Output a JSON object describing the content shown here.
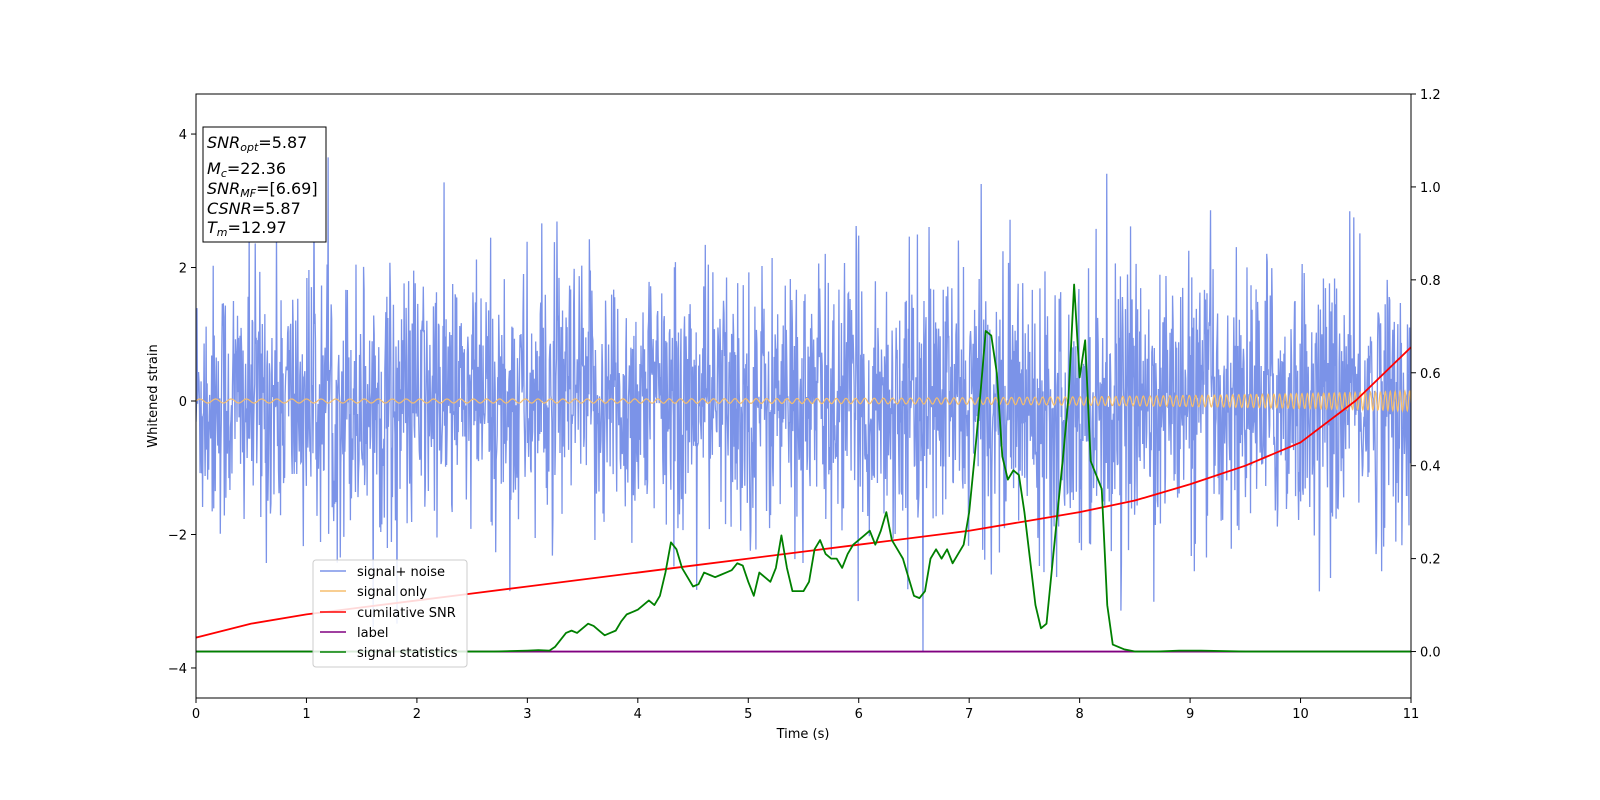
{
  "chart_data": {
    "type": "line",
    "xlabel": "Time (s)",
    "ylabel": "Whitened strain",
    "xlim": [
      0,
      11
    ],
    "ylim": [
      -4.45,
      4.6
    ],
    "y2lim": [
      -0.1,
      1.2
    ],
    "x_ticks": [
      0,
      1,
      2,
      3,
      4,
      5,
      6,
      7,
      8,
      9,
      10,
      11
    ],
    "y_ticks": [
      -4,
      -2,
      0,
      2,
      4
    ],
    "y2_ticks": [
      0.0,
      0.2,
      0.4,
      0.6,
      0.8,
      1.0,
      1.2
    ],
    "x_tick_labels": [
      "0",
      "1",
      "2",
      "3",
      "4",
      "5",
      "6",
      "7",
      "8",
      "9",
      "10",
      "11"
    ],
    "y_tick_labels": [
      "−4",
      "−2",
      "0",
      "2",
      "4"
    ],
    "y2_tick_labels": [
      "0.0",
      "0.2",
      "0.4",
      "0.6",
      "0.8",
      "1.0",
      "1.2"
    ],
    "grid": false,
    "legend_placement": "lower-left",
    "info_box": {
      "snr_opt": "5.87",
      "mc": "22.36",
      "snr_mf": "[6.69]",
      "csnr": "5.87",
      "tm": "12.97"
    },
    "series": [
      {
        "name": "signal+ noise",
        "axis": "left",
        "color": "#7b93e8",
        "description_level": "noise",
        "std": 1.0
      },
      {
        "name": "signal only",
        "axis": "left",
        "color": "#f5be6e",
        "amplitude_start": 0.03,
        "amplitude_end": 0.15
      },
      {
        "name": "cumilative SNR",
        "axis": "right",
        "color": "#ff0000",
        "x": [
          0,
          0.5,
          1,
          1.5,
          2,
          2.5,
          3,
          3.5,
          4,
          4.5,
          5,
          5.5,
          6,
          6.5,
          7,
          7.5,
          8,
          8.5,
          9,
          9.5,
          10,
          10.5,
          11
        ],
        "values": [
          0.03,
          0.06,
          0.08,
          0.095,
          0.11,
          0.125,
          0.14,
          0.155,
          0.17,
          0.185,
          0.2,
          0.215,
          0.23,
          0.245,
          0.26,
          0.28,
          0.3,
          0.325,
          0.36,
          0.4,
          0.45,
          0.54,
          0.655
        ]
      },
      {
        "name": "label",
        "axis": "right",
        "color": "#800080",
        "x": [
          0,
          11
        ],
        "values": [
          0.0,
          0.0
        ]
      },
      {
        "name": "signal statistics",
        "axis": "right",
        "color": "#008000",
        "x": [
          0,
          0.5,
          1,
          1.5,
          2,
          2.5,
          2.7,
          3.0,
          3.1,
          3.2,
          3.25,
          3.3,
          3.35,
          3.4,
          3.45,
          3.5,
          3.55,
          3.6,
          3.65,
          3.7,
          3.75,
          3.8,
          3.85,
          3.9,
          3.95,
          4.0,
          4.05,
          4.1,
          4.15,
          4.2,
          4.25,
          4.3,
          4.35,
          4.4,
          4.45,
          4.5,
          4.55,
          4.6,
          4.65,
          4.7,
          4.75,
          4.8,
          4.85,
          4.9,
          4.95,
          5.0,
          5.05,
          5.1,
          5.15,
          5.2,
          5.25,
          5.3,
          5.35,
          5.4,
          5.45,
          5.5,
          5.55,
          5.6,
          5.65,
          5.7,
          5.75,
          5.8,
          5.85,
          5.9,
          5.95,
          6.0,
          6.05,
          6.1,
          6.15,
          6.2,
          6.25,
          6.3,
          6.35,
          6.4,
          6.45,
          6.5,
          6.55,
          6.6,
          6.65,
          6.7,
          6.75,
          6.8,
          6.85,
          6.9,
          6.95,
          7.0,
          7.05,
          7.1,
          7.15,
          7.2,
          7.25,
          7.3,
          7.35,
          7.4,
          7.45,
          7.5,
          7.55,
          7.6,
          7.65,
          7.7,
          7.75,
          7.8,
          7.85,
          7.9,
          7.95,
          8.0,
          8.05,
          8.1,
          8.15,
          8.2,
          8.25,
          8.3,
          8.4,
          8.5,
          8.7,
          8.9,
          9.1,
          9.5,
          10,
          10.5,
          11
        ],
        "values": [
          0.0,
          0.0,
          0.0,
          0.0,
          0.0,
          0.0,
          0.0,
          0.002,
          0.003,
          0.002,
          0.01,
          0.025,
          0.04,
          0.045,
          0.04,
          0.05,
          0.06,
          0.055,
          0.045,
          0.035,
          0.04,
          0.045,
          0.065,
          0.08,
          0.085,
          0.09,
          0.1,
          0.11,
          0.1,
          0.12,
          0.17,
          0.235,
          0.22,
          0.18,
          0.16,
          0.14,
          0.145,
          0.17,
          0.165,
          0.16,
          0.165,
          0.17,
          0.175,
          0.19,
          0.185,
          0.15,
          0.12,
          0.17,
          0.16,
          0.15,
          0.18,
          0.25,
          0.18,
          0.13,
          0.13,
          0.13,
          0.15,
          0.22,
          0.24,
          0.21,
          0.2,
          0.2,
          0.18,
          0.21,
          0.23,
          0.24,
          0.25,
          0.26,
          0.23,
          0.26,
          0.3,
          0.24,
          0.22,
          0.2,
          0.16,
          0.12,
          0.115,
          0.13,
          0.2,
          0.22,
          0.2,
          0.22,
          0.19,
          0.21,
          0.23,
          0.3,
          0.42,
          0.55,
          0.69,
          0.68,
          0.6,
          0.42,
          0.37,
          0.39,
          0.38,
          0.3,
          0.2,
          0.1,
          0.05,
          0.06,
          0.18,
          0.3,
          0.42,
          0.55,
          0.79,
          0.59,
          0.67,
          0.41,
          0.38,
          0.35,
          0.1,
          0.015,
          0.005,
          0.0,
          0.0,
          0.002,
          0.002,
          0.0,
          0.0,
          0.0,
          0.0
        ]
      }
    ]
  }
}
